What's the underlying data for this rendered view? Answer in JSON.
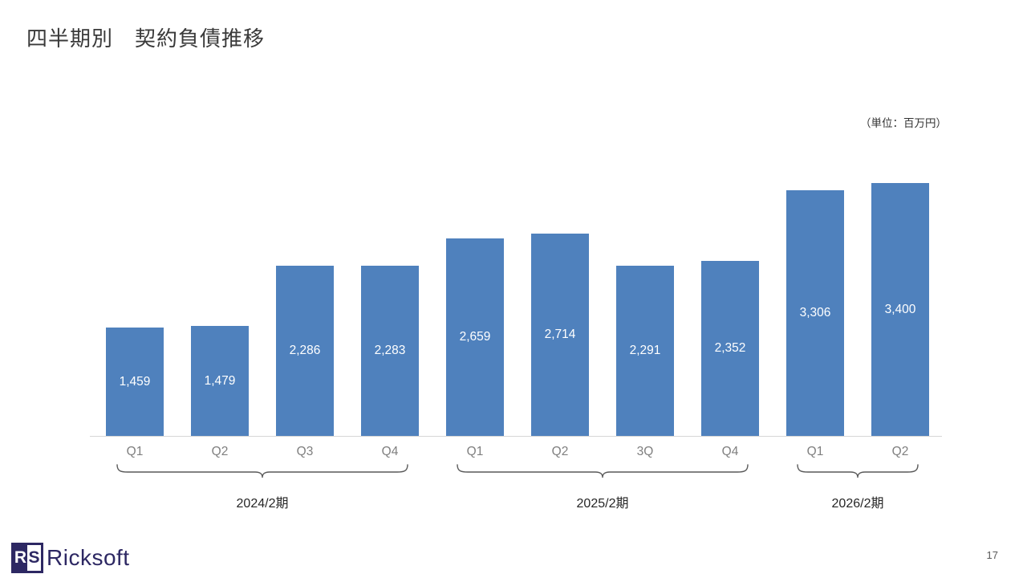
{
  "slide": {
    "title": "四半期別　契約負債推移",
    "unit_note": "（単位：百万円）",
    "page_number": "17"
  },
  "logo": {
    "r": "R",
    "s": "S",
    "name": "Ricksoft",
    "brand_color": "#2d2863"
  },
  "chart_data": {
    "type": "bar",
    "title": "四半期別　契約負債推移",
    "unit": "百万円",
    "categories": [
      "Q1",
      "Q2",
      "Q3",
      "Q4",
      "Q1",
      "Q2",
      "3Q",
      "Q4",
      "Q1",
      "Q2"
    ],
    "values": [
      1459,
      1479,
      2286,
      2283,
      2659,
      2714,
      2291,
      2352,
      3306,
      3400
    ],
    "value_labels": [
      "1,459",
      "1,479",
      "2,286",
      "2,283",
      "2,659",
      "2,714",
      "2,291",
      "2,352",
      "3,306",
      "3,400"
    ],
    "groups": [
      {
        "label": "2024/2期",
        "start": 0,
        "end": 3
      },
      {
        "label": "2025/2期",
        "start": 4,
        "end": 7
      },
      {
        "label": "2026/2期",
        "start": 8,
        "end": 9
      }
    ],
    "ylim": [
      0,
      3700
    ],
    "bar_color": "#4f81bd",
    "value_label_color": "#ffffff",
    "category_color": "#7f7f7f",
    "bracket_color": "#595959",
    "axis_color": "#d6d6d6",
    "grid": false,
    "legend": "none"
  }
}
